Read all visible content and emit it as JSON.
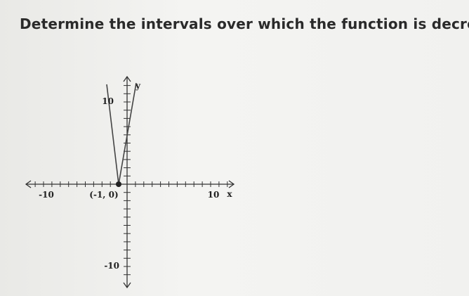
{
  "question": "Determine the intervals over which the function is decreasin",
  "graph": {
    "y_top_label": "10",
    "y_axis_name": "y",
    "x_left_label": "-10",
    "vertex_label": "(-1, 0)",
    "x_right_label": "10",
    "x_axis_name": "x",
    "y_bottom_label": "-10"
  }
}
